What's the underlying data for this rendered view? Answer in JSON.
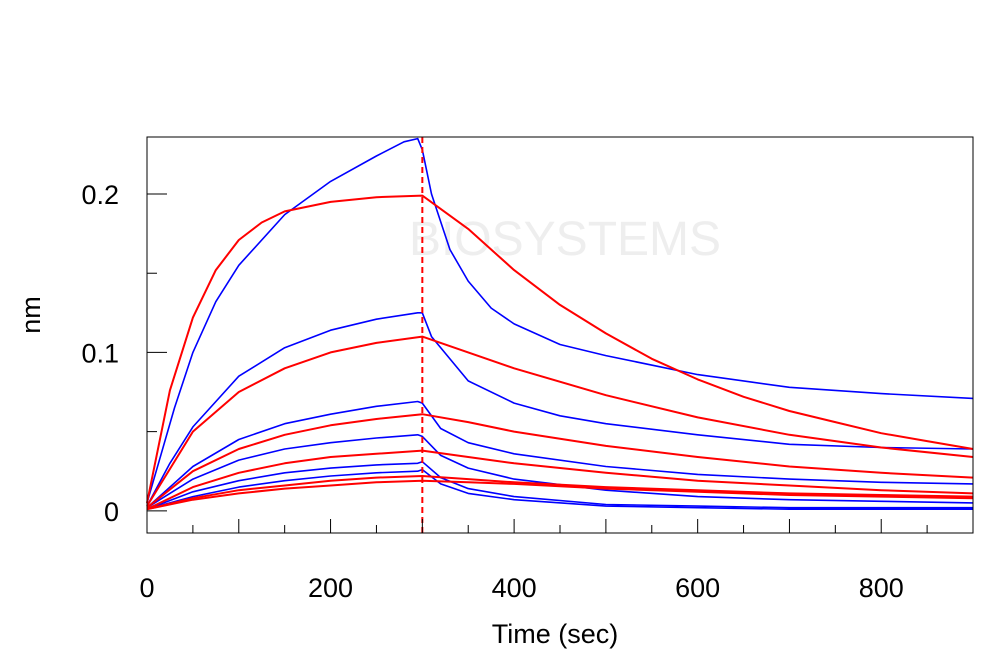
{
  "chart_data": {
    "type": "line",
    "title": "",
    "xlabel": "Time (sec)",
    "ylabel": "nm",
    "xlim": [
      0,
      900
    ],
    "ylim": [
      -0.014,
      0.236
    ],
    "x_ticks": [
      0,
      200,
      400,
      600,
      800
    ],
    "x_tick_labels": [
      "0",
      "200",
      "400",
      "600",
      "800"
    ],
    "y_ticks": [
      0,
      0.1,
      0.2
    ],
    "y_tick_labels": [
      "0",
      "0.1",
      "0.2"
    ],
    "grid": false,
    "legend": "none",
    "dissociation_start": 300,
    "watermark": "BIOSYSTEMS",
    "colors": {
      "observed": "#0000ff",
      "fit": "#ff0000",
      "divider": "#ff0000",
      "frame": "#000000",
      "watermark": "#eeeeee"
    },
    "series": [
      {
        "kind": "observed",
        "x": [
          0,
          10,
          30,
          50,
          75,
          100,
          150,
          200,
          250,
          280,
          295,
          300,
          310,
          330,
          350,
          375,
          400,
          450,
          500,
          600,
          700,
          800,
          900
        ],
        "y": [
          0.005,
          0.025,
          0.065,
          0.1,
          0.132,
          0.155,
          0.187,
          0.208,
          0.224,
          0.233,
          0.235,
          0.228,
          0.2,
          0.165,
          0.145,
          0.128,
          0.118,
          0.105,
          0.098,
          0.086,
          0.078,
          0.074,
          0.071
        ]
      },
      {
        "kind": "observed",
        "x": [
          0,
          25,
          50,
          100,
          150,
          200,
          250,
          295,
          300,
          310,
          350,
          400,
          450,
          500,
          600,
          700,
          800,
          900
        ],
        "y": [
          0.003,
          0.03,
          0.053,
          0.085,
          0.103,
          0.114,
          0.121,
          0.125,
          0.125,
          0.11,
          0.082,
          0.068,
          0.06,
          0.055,
          0.048,
          0.042,
          0.04,
          0.039
        ]
      },
      {
        "kind": "observed",
        "x": [
          0,
          50,
          100,
          150,
          200,
          250,
          295,
          300,
          320,
          350,
          400,
          500,
          600,
          700,
          800,
          900
        ],
        "y": [
          0.002,
          0.028,
          0.045,
          0.055,
          0.061,
          0.066,
          0.069,
          0.068,
          0.052,
          0.043,
          0.036,
          0.028,
          0.023,
          0.02,
          0.018,
          0.017
        ]
      },
      {
        "kind": "observed",
        "x": [
          0,
          50,
          100,
          150,
          200,
          250,
          295,
          300,
          320,
          350,
          400,
          500,
          600,
          700,
          800,
          900
        ],
        "y": [
          0.002,
          0.02,
          0.032,
          0.039,
          0.043,
          0.046,
          0.048,
          0.047,
          0.035,
          0.027,
          0.02,
          0.013,
          0.009,
          0.007,
          0.006,
          0.005
        ]
      },
      {
        "kind": "observed",
        "x": [
          0,
          50,
          100,
          150,
          200,
          250,
          295,
          300,
          320,
          350,
          400,
          500,
          600,
          700,
          800,
          900
        ],
        "y": [
          0.001,
          0.012,
          0.019,
          0.024,
          0.027,
          0.029,
          0.03,
          0.031,
          0.021,
          0.014,
          0.009,
          0.004,
          0.003,
          0.002,
          0.002,
          0.002
        ]
      },
      {
        "kind": "observed",
        "x": [
          0,
          50,
          100,
          150,
          200,
          250,
          295,
          300,
          320,
          350,
          400,
          500,
          600,
          700,
          800,
          900
        ],
        "y": [
          0.001,
          0.009,
          0.015,
          0.019,
          0.022,
          0.024,
          0.025,
          0.026,
          0.017,
          0.011,
          0.007,
          0.003,
          0.002,
          0.001,
          0.001,
          0.001
        ]
      },
      {
        "kind": "fit",
        "x": [
          0,
          25,
          50,
          75,
          100,
          125,
          150,
          200,
          250,
          300,
          350,
          400,
          450,
          500,
          550,
          600,
          650,
          700,
          750,
          800,
          850,
          900
        ],
        "y": [
          0.005,
          0.076,
          0.122,
          0.152,
          0.171,
          0.182,
          0.189,
          0.195,
          0.198,
          0.199,
          0.178,
          0.152,
          0.13,
          0.112,
          0.096,
          0.083,
          0.072,
          0.063,
          0.056,
          0.049,
          0.044,
          0.039
        ]
      },
      {
        "kind": "fit",
        "x": [
          0,
          50,
          100,
          150,
          200,
          250,
          300,
          350,
          400,
          500,
          600,
          700,
          800,
          900
        ],
        "y": [
          0.003,
          0.05,
          0.075,
          0.09,
          0.1,
          0.106,
          0.11,
          0.1,
          0.09,
          0.073,
          0.059,
          0.048,
          0.04,
          0.034
        ]
      },
      {
        "kind": "fit",
        "x": [
          0,
          50,
          100,
          150,
          200,
          250,
          300,
          350,
          400,
          500,
          600,
          700,
          800,
          900
        ],
        "y": [
          0.002,
          0.025,
          0.039,
          0.048,
          0.054,
          0.058,
          0.061,
          0.056,
          0.05,
          0.041,
          0.034,
          0.028,
          0.024,
          0.021
        ]
      },
      {
        "kind": "fit",
        "x": [
          0,
          50,
          100,
          150,
          200,
          250,
          300,
          350,
          400,
          500,
          600,
          700,
          800,
          900
        ],
        "y": [
          0.001,
          0.015,
          0.024,
          0.03,
          0.034,
          0.036,
          0.038,
          0.034,
          0.03,
          0.024,
          0.019,
          0.016,
          0.013,
          0.011
        ]
      },
      {
        "kind": "fit",
        "x": [
          0,
          50,
          100,
          150,
          200,
          250,
          300,
          350,
          400,
          500,
          600,
          700,
          800,
          900
        ],
        "y": [
          0.001,
          0.008,
          0.013,
          0.016,
          0.019,
          0.021,
          0.022,
          0.02,
          0.018,
          0.015,
          0.013,
          0.011,
          0.01,
          0.009
        ]
      },
      {
        "kind": "fit",
        "x": [
          0,
          50,
          100,
          150,
          200,
          250,
          300,
          350,
          400,
          500,
          600,
          700,
          800,
          900
        ],
        "y": [
          0.001,
          0.007,
          0.011,
          0.014,
          0.016,
          0.018,
          0.019,
          0.018,
          0.017,
          0.014,
          0.012,
          0.01,
          0.009,
          0.008
        ]
      }
    ]
  }
}
